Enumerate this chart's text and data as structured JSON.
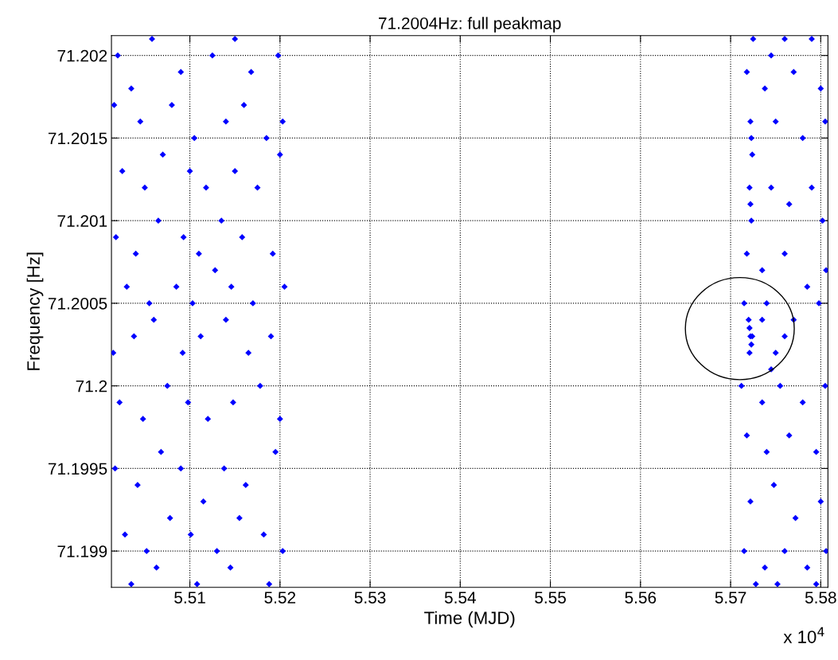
{
  "chart_data": {
    "type": "scatter",
    "title": "71.2004Hz: full peakmap",
    "xlabel": "Time (MJD)",
    "ylabel": "Frequency [Hz]",
    "annotations": [
      "x 10$^{4}$"
    ],
    "xlim": [
      5.5013,
      5.5808
    ],
    "ylim": [
      71.19878,
      71.20212
    ],
    "xticks": [
      5.51,
      5.52,
      5.53,
      5.54,
      5.55,
      5.56,
      5.57,
      5.58
    ],
    "yticks": [
      71.199,
      71.1995,
      {
        "value": 71.2,
        "label": "71.2"
      },
      71.2005,
      71.201,
      71.2015,
      71.202
    ],
    "grid": true,
    "marker": "diamond",
    "series": [
      {
        "color": "#0000ff",
        "x": [
          5.502,
          5.5035,
          5.5058,
          5.509,
          5.5125,
          5.515,
          5.5168,
          5.5198,
          5.5016,
          5.5045,
          5.508,
          5.5105,
          5.514,
          5.516,
          5.5185,
          5.5203,
          5.5025,
          5.505,
          5.507,
          5.51,
          5.5118,
          5.515,
          5.5175,
          5.52,
          5.5018,
          5.504,
          5.5065,
          5.5093,
          5.511,
          5.5135,
          5.5158,
          5.5192,
          5.503,
          5.5055,
          5.5085,
          5.5103,
          5.5128,
          5.5146,
          5.517,
          5.5205,
          5.5015,
          5.5038,
          5.506,
          5.5092,
          5.5112,
          5.514,
          5.5165,
          5.519,
          5.5022,
          5.5048,
          5.5075,
          5.5098,
          5.512,
          5.5148,
          5.5178,
          5.52,
          5.5017,
          5.5042,
          5.5068,
          5.509,
          5.5115,
          5.5138,
          5.5162,
          5.5195,
          5.5028,
          5.5052,
          5.5078,
          5.5101,
          5.513,
          5.5155,
          5.5182,
          5.5203,
          5.5035,
          5.5063,
          5.5108,
          5.5145,
          5.5188,
          5.5725,
          5.5745,
          5.576,
          5.579,
          5.5718,
          5.5738,
          5.577,
          5.58,
          5.5722,
          5.5723,
          5.5724,
          5.575,
          5.578,
          5.5805,
          5.5721,
          5.5722,
          5.5723,
          5.5745,
          5.5765,
          5.579,
          5.5802,
          5.5718,
          5.5735,
          5.576,
          5.5785,
          5.5806,
          5.5715,
          5.574,
          5.577,
          5.5798,
          5.572,
          5.5721,
          5.5722,
          5.5723,
          5.5721,
          5.5724,
          5.5735,
          5.575,
          5.576,
          5.5745,
          5.5712,
          5.5735,
          5.5755,
          5.578,
          5.5805,
          5.5718,
          5.574,
          5.5765,
          5.5795,
          5.5722,
          5.5748,
          5.5772,
          5.58,
          5.5715,
          5.5738,
          5.576,
          5.5785,
          5.5806,
          5.5728,
          5.5752,
          5.5795
        ],
        "values": [
          71.202,
          71.2018,
          71.2021,
          71.2019,
          71.202,
          71.2021,
          71.2019,
          71.202,
          71.2017,
          71.2016,
          71.2017,
          71.2015,
          71.2016,
          71.2017,
          71.2015,
          71.2016,
          71.2013,
          71.2012,
          71.2014,
          71.2013,
          71.2012,
          71.2013,
          71.2012,
          71.2014,
          71.2009,
          71.2008,
          71.201,
          71.2009,
          71.2008,
          71.201,
          71.2009,
          71.2008,
          71.2006,
          71.2005,
          71.2006,
          71.2005,
          71.2007,
          71.2006,
          71.2005,
          71.2006,
          71.2002,
          71.2003,
          71.2004,
          71.2002,
          71.2003,
          71.2004,
          71.2002,
          71.2003,
          71.1999,
          71.1998,
          71.2,
          71.1999,
          71.1998,
          71.1999,
          71.2,
          71.1998,
          71.1995,
          71.1994,
          71.1996,
          71.1995,
          71.1993,
          71.1995,
          71.1994,
          71.1996,
          71.1991,
          71.199,
          71.1992,
          71.1991,
          71.199,
          71.1992,
          71.1991,
          71.199,
          71.1988,
          71.1989,
          71.1988,
          71.1989,
          71.1988,
          71.2021,
          71.202,
          71.2021,
          71.2021,
          71.2019,
          71.2018,
          71.2019,
          71.2018,
          71.2016,
          71.2015,
          71.2014,
          71.2016,
          71.2015,
          71.2016,
          71.2012,
          71.2011,
          71.201,
          71.2012,
          71.2011,
          71.2012,
          71.201,
          71.2008,
          71.2007,
          71.2008,
          71.2006,
          71.2007,
          71.2005,
          71.2005,
          71.2004,
          71.2005,
          71.2004,
          71.20035,
          71.2003,
          71.20025,
          71.2002,
          71.2003,
          71.2004,
          71.2002,
          71.2003,
          71.2001,
          71.2,
          71.1999,
          71.2,
          71.1999,
          71.2,
          71.1997,
          71.1996,
          71.1997,
          71.1996,
          71.1993,
          71.1994,
          71.1992,
          71.1993,
          71.199,
          71.1989,
          71.199,
          71.1989,
          71.199,
          71.1988,
          71.1988,
          71.1988
        ]
      }
    ]
  }
}
